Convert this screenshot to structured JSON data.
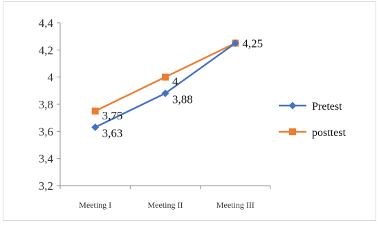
{
  "chart_data": {
    "type": "line",
    "title": "",
    "xlabel": "",
    "ylabel": "",
    "categories": [
      "Meeting I",
      "Meeting II",
      "Meeting III"
    ],
    "ylim": [
      3.2,
      4.4
    ],
    "yticks": [
      3.2,
      3.4,
      3.6,
      3.8,
      4.0,
      4.2,
      4.4
    ],
    "ytick_labels": [
      "3,2",
      "3,4",
      "3,6",
      "3,8",
      "4",
      "4,2",
      "4,4"
    ],
    "grid": false,
    "legend_position": "right",
    "series": [
      {
        "name": "Pretest",
        "values": [
          3.63,
          3.88,
          4.25
        ],
        "labels": [
          "3,63",
          "3,88",
          "4,25"
        ],
        "color": "#4472C4",
        "marker": "diamond"
      },
      {
        "name": "posttest",
        "values": [
          3.75,
          4.0,
          4.25
        ],
        "labels": [
          "3,75",
          "4",
          ""
        ],
        "color": "#ED7D31",
        "marker": "square"
      }
    ]
  }
}
